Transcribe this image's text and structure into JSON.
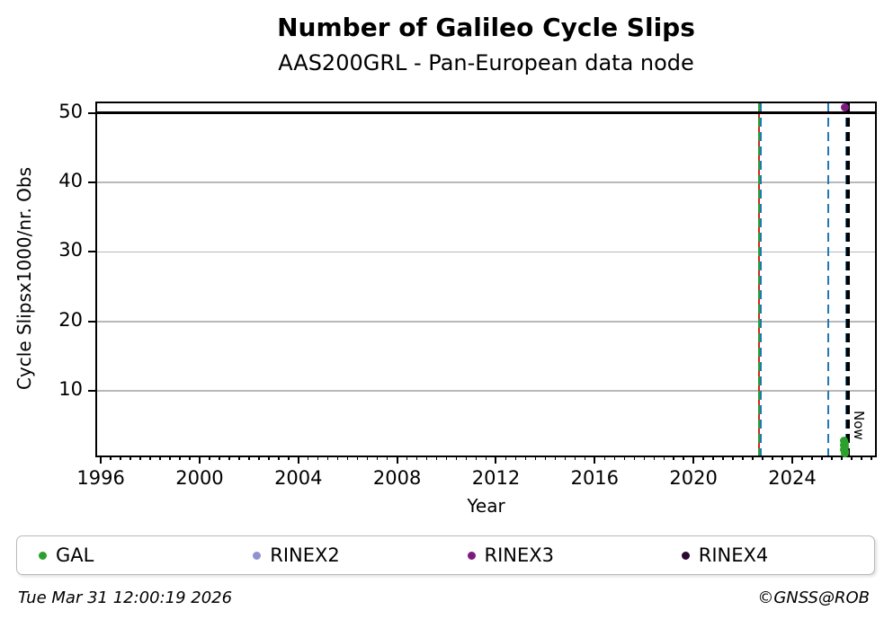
{
  "chart_data": {
    "type": "scatter",
    "title": "Number of Galileo Cycle Slips",
    "subtitle": "AAS200GRL - Pan-European data node",
    "xlabel": "Year",
    "ylabel": "Cycle Slipsx1000/nr. Obs",
    "xlim": [
      1995.85,
      2027.35
    ],
    "ylim": [
      0.7,
      51.4
    ],
    "x_major_ticks": [
      1996,
      2000,
      2004,
      2008,
      2012,
      2016,
      2020,
      2024
    ],
    "x_minor_step": 0.4,
    "y_ticks": [
      10,
      20,
      30,
      40,
      50
    ],
    "grid": "horizontal",
    "grid_color": "#b8b8b8",
    "hline": {
      "y": 50,
      "color": "#000000",
      "width": 3
    },
    "vlines": [
      {
        "x": 2022.66,
        "color": "#d62222",
        "style": "solid",
        "width": 2,
        "name": "event-line-red"
      },
      {
        "x": 2022.66,
        "color": "#2ca02c",
        "style": "dashed",
        "width": 2,
        "name": "event-line-green"
      },
      {
        "x": 2022.74,
        "color": "#1f77b4",
        "style": "dashed",
        "width": 2,
        "name": "event-line-blue-1"
      },
      {
        "x": 2025.45,
        "color": "#1f77b4",
        "style": "dashed",
        "width": 2,
        "name": "event-line-blue-2"
      },
      {
        "x": 2026.17,
        "color": "#1f77b4",
        "style": "dashed",
        "width": 2,
        "name": "event-line-blue-3"
      },
      {
        "x": 2026.25,
        "color": "#000000",
        "style": "dashed",
        "width": 3.5,
        "name": "now-line",
        "label": "Now"
      }
    ],
    "now_label": "Now",
    "series": [
      {
        "name": "GAL",
        "color": "#2ca02c",
        "points": [
          [
            2026.1,
            2.8
          ],
          [
            2026.13,
            2.5
          ],
          [
            2026.11,
            2.2
          ],
          [
            2026.14,
            1.9
          ],
          [
            2026.1,
            1.6
          ],
          [
            2026.13,
            1.3
          ],
          [
            2026.12,
            1.0
          ]
        ]
      },
      {
        "name": "RINEX2",
        "color": "#9092d0",
        "points": []
      },
      {
        "name": "RINEX3",
        "color": "#7d1a80",
        "points": [
          [
            2026.12,
            50.8
          ]
        ]
      },
      {
        "name": "RINEX4",
        "color": "#2a0a33",
        "points": []
      }
    ]
  },
  "legend": {
    "items": [
      {
        "label": "GAL",
        "color": "#2ca02c"
      },
      {
        "label": "RINEX2",
        "color": "#9092d0"
      },
      {
        "label": "RINEX3",
        "color": "#7d1a80"
      },
      {
        "label": "RINEX4",
        "color": "#2a0a33"
      }
    ]
  },
  "footer": {
    "timestamp": "Tue Mar 31 12:00:19 2026",
    "credit": "©GNSS@ROB"
  }
}
